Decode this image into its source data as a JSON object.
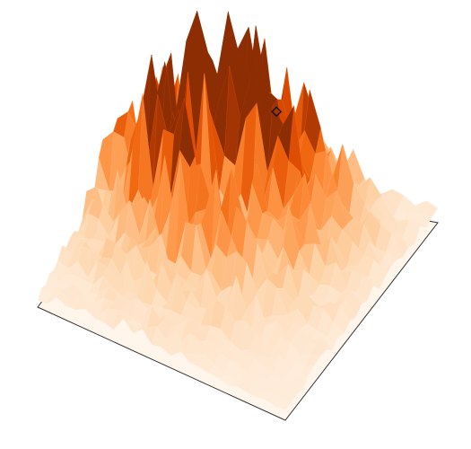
{
  "chart_data": {
    "type": "surface3d",
    "title": "",
    "xlabel": "",
    "ylabel": "",
    "zlabel": "",
    "colormap": "Oranges",
    "grid": false,
    "axes_visible": false,
    "floor_color": "#fff5eb",
    "edge_color": "#333333",
    "x_cells": 26,
    "y_cells": 26,
    "zlim": [
      0,
      1
    ],
    "features": [
      {
        "name": "broad-hump",
        "center": [
          0.42,
          0.42
        ],
        "spread": 0.33,
        "height": 0.28
      },
      {
        "name": "spike-cluster-rear",
        "center": [
          0.3,
          0.3
        ],
        "spread": 0.22,
        "height": 0.55
      },
      {
        "name": "spike-cluster-right",
        "center": [
          0.55,
          0.28
        ],
        "spread": 0.18,
        "height": 0.4
      }
    ],
    "marker": {
      "shape": "diamond",
      "x": 0.55,
      "y": 0.22
    }
  }
}
